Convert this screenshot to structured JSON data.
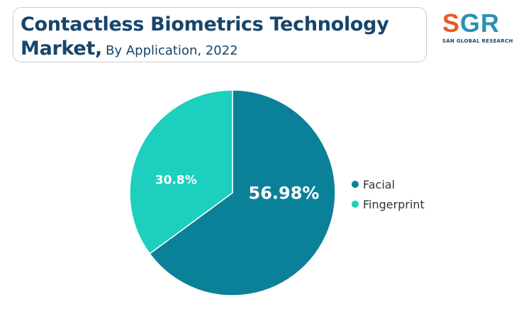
{
  "title": {
    "line1": "Contactless Biometrics Technology",
    "line2_strong": "Market,",
    "line2_sub": "By Application, 2022"
  },
  "logo": {
    "letter_s": "S",
    "letters_gr": "GR",
    "subtitle": "SAN GLOBAL RESEARCH"
  },
  "chart_data": {
    "type": "pie",
    "title": "Contactless Biometrics Technology Market, By Application, 2022",
    "slices": [
      {
        "name": "Facial",
        "value": 56.98,
        "label": "56.98%",
        "color": "#0b8199"
      },
      {
        "name": "Fingerprint",
        "value": 30.8,
        "label": "30.8%",
        "color": "#1ccfbf"
      }
    ],
    "legend_position": "right"
  }
}
